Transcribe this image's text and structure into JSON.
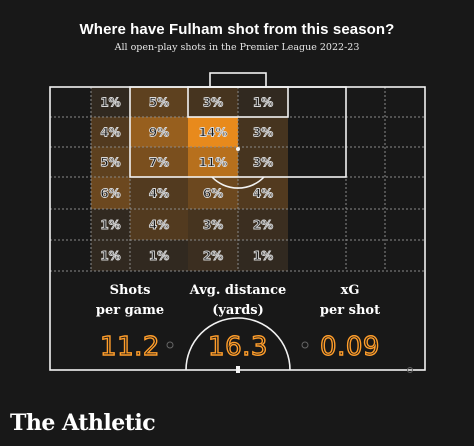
{
  "chart_data": {
    "type": "heatmap",
    "title": "Where have Fulham shot from this season?",
    "subtitle": "All open-play shots in the Premier League 2022-23",
    "cells": [
      {
        "row": 0,
        "col": 1,
        "value": 1,
        "label": "1%"
      },
      {
        "row": 0,
        "col": 2,
        "value": 5,
        "label": "5%"
      },
      {
        "row": 0,
        "col": 3,
        "value": 3,
        "label": "3%"
      },
      {
        "row": 0,
        "col": 4,
        "value": 1,
        "label": "1%"
      },
      {
        "row": 1,
        "col": 1,
        "value": 4,
        "label": "4%"
      },
      {
        "row": 1,
        "col": 2,
        "value": 9,
        "label": "9%"
      },
      {
        "row": 1,
        "col": 3,
        "value": 14,
        "label": "14%"
      },
      {
        "row": 1,
        "col": 4,
        "value": 3,
        "label": "3%"
      },
      {
        "row": 2,
        "col": 1,
        "value": 5,
        "label": "5%"
      },
      {
        "row": 2,
        "col": 2,
        "value": 7,
        "label": "7%"
      },
      {
        "row": 2,
        "col": 3,
        "value": 11,
        "label": "11%"
      },
      {
        "row": 2,
        "col": 4,
        "value": 3,
        "label": "3%"
      },
      {
        "row": 3,
        "col": 1,
        "value": 6,
        "label": "6%"
      },
      {
        "row": 3,
        "col": 2,
        "value": 4,
        "label": "4%"
      },
      {
        "row": 3,
        "col": 3,
        "value": 6,
        "label": "6%"
      },
      {
        "row": 3,
        "col": 4,
        "value": 4,
        "label": "4%"
      },
      {
        "row": 4,
        "col": 1,
        "value": 1,
        "label": "1%"
      },
      {
        "row": 4,
        "col": 2,
        "value": 4,
        "label": "4%"
      },
      {
        "row": 4,
        "col": 3,
        "value": 3,
        "label": "3%"
      },
      {
        "row": 4,
        "col": 4,
        "value": 2,
        "label": "2%"
      },
      {
        "row": 5,
        "col": 1,
        "value": 1,
        "label": "1%"
      },
      {
        "row": 5,
        "col": 2,
        "value": 1,
        "label": "1%"
      },
      {
        "row": 5,
        "col": 3,
        "value": 2,
        "label": "2%"
      },
      {
        "row": 5,
        "col": 4,
        "value": 1,
        "label": "1%"
      }
    ],
    "color_scale": {
      "low": "#2a2520",
      "high": "#e88a1c"
    }
  },
  "stats": [
    {
      "label_line1": "Shots",
      "label_line2": "per game",
      "value": "11.2"
    },
    {
      "label_line1": "Avg. distance",
      "label_line2": "(yards)",
      "value": "16.3"
    },
    {
      "label_line1": "xG",
      "label_line2": "per shot",
      "value": "0.09"
    }
  ],
  "brand": "The Athletic",
  "colors": {
    "accent": "#ff9d2a",
    "background": "#181818",
    "lines": "#f2f2f2"
  }
}
